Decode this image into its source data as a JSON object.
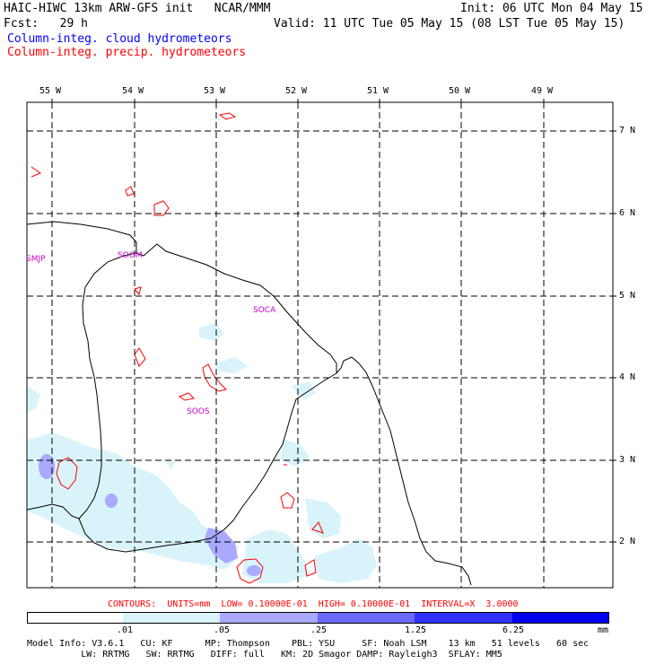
{
  "header": {
    "line1_left": "HAIC-HIWC 13km ARW-GFS init   NCAR/MMM",
    "line1_right": "Init: 06 UTC Mon 04 May 15",
    "line2_left": "Fcst:   29 h",
    "line2_right": "Valid: 11 UTC Tue 05 May 15 (08 LST Tue 05 May 15)",
    "legend_cloud": "Column-integ. cloud hydrometeors",
    "legend_precip": "Column-integ. precip. hydrometeors"
  },
  "colors": {
    "cloud_legend": "#0000ff",
    "precip_legend": "#ff0000",
    "contour": "#ff0000",
    "station": "#cc00cc",
    "fill1": "#d8f4fa",
    "fill2": "#a9a9ff",
    "fill3": "#6a6aff",
    "fill4": "#3030ff",
    "fill5": "#0000ee"
  },
  "map": {
    "longitude_labels": [
      "55 W",
      "54 W",
      "53 W",
      "52 W",
      "51 W",
      "50 W",
      "49 W"
    ],
    "latitude_labels": [
      "7 N",
      "6 N",
      "5 N",
      "4 N",
      "3 N",
      "2 N"
    ],
    "stations": [
      "SMJP",
      "SOOM",
      "SOCA",
      "SOOS"
    ]
  },
  "contour_info": "CONTOURS:  UNITS=mm  LOW= 0.10000E-01  HIGH= 0.10000E-01  INTERVAL=X  3.0000",
  "colorbar": {
    "labels": [
      ".01",
      ".05",
      ".25",
      "1.25",
      "6.25",
      "mm"
    ],
    "colors": [
      "#ffffff",
      "#d8f4fa",
      "#a9a9ff",
      "#6a6aff",
      "#3030ff",
      "#0000ee"
    ]
  },
  "footer": {
    "line1": "Model Info: V3.6.1   CU: KF      MP: Thompson    PBL: YSU     SF: Noah LSM    13 km   51 levels   60 sec",
    "line2": "          LW: RRTMG   SW: RRTMG   DIFF: full   KM: 2D Smagor DAMP: Rayleigh3  SFLAY: MM5"
  }
}
